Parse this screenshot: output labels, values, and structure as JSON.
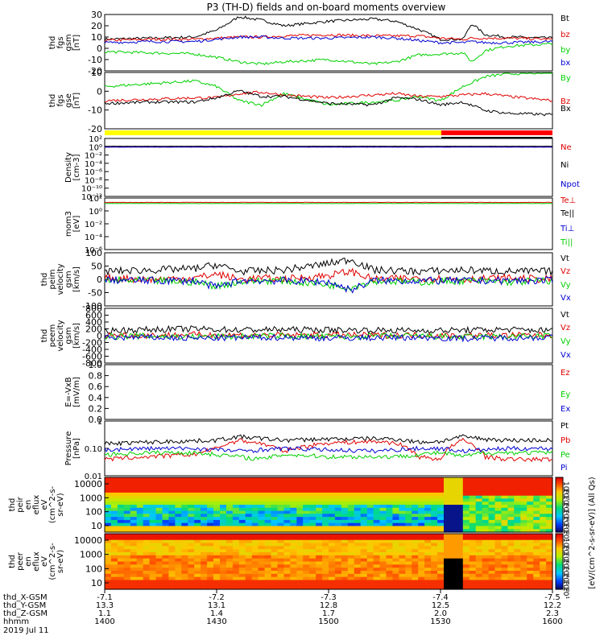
{
  "title": "P3 (TH-D) fields and on-board moments overview",
  "colors": {
    "black": "#000000",
    "red": "#e00000",
    "green": "#00d000",
    "blue": "#0000d0",
    "yellow": "#ffff00",
    "mode_red": "#ff0000",
    "dark_green": "#006000"
  },
  "chart_data": [
    {
      "type": "line",
      "ylabel": [
        "thd",
        "fgs",
        "gsm",
        "[nT]"
      ],
      "ylim": [
        -20,
        30
      ],
      "yticks": [
        "30",
        "20",
        "10",
        "0",
        "-10",
        "-20"
      ],
      "legend": [
        {
          "label": "Bt",
          "color": "#000000"
        },
        {
          "label": "bz",
          "color": "#e00000"
        },
        {
          "label": "by",
          "color": "#00d000"
        },
        {
          "label": "bx",
          "color": "#0000d0"
        }
      ],
      "x": [
        0,
        0.1,
        0.2,
        0.25,
        0.3,
        0.35,
        0.4,
        0.5,
        0.6,
        0.65,
        0.7,
        0.75,
        0.8,
        0.82,
        0.85,
        0.9,
        1.0
      ],
      "series": [
        {
          "name": "Bt",
          "color": "#000000",
          "values": [
            8,
            9,
            10,
            16,
            28,
            25,
            20,
            24,
            26,
            24,
            17,
            8,
            8,
            22,
            12,
            10,
            9
          ]
        },
        {
          "name": "bz",
          "color": "#e00000",
          "values": [
            7,
            8,
            8,
            9,
            10,
            10,
            11,
            12,
            11,
            11,
            11,
            9,
            8,
            9,
            9,
            9,
            8
          ]
        },
        {
          "name": "by",
          "color": "#00d000",
          "values": [
            -3,
            -4,
            -5,
            -8,
            -12,
            -14,
            -12,
            -10,
            -14,
            -12,
            -6,
            -5,
            -4,
            -12,
            -2,
            2,
            4
          ]
        },
        {
          "name": "bx",
          "color": "#0000d0",
          "values": [
            5,
            6,
            6,
            8,
            10,
            10,
            9,
            9,
            10,
            9,
            7,
            5,
            5,
            6,
            5,
            5,
            6
          ]
        }
      ]
    },
    {
      "type": "line",
      "ylabel": [
        "thd",
        "fgs",
        "gse",
        "[nT]"
      ],
      "ylim": [
        -25,
        15
      ],
      "yticks": [
        "10",
        "0",
        "-10",
        "-20"
      ],
      "legend": [
        {
          "label": "By",
          "color": "#00d000"
        },
        {
          "label": "Bz",
          "color": "#e00000"
        },
        {
          "label": "Bx",
          "color": "#000000"
        }
      ],
      "x": [
        0,
        0.1,
        0.2,
        0.25,
        0.3,
        0.35,
        0.4,
        0.5,
        0.6,
        0.65,
        0.7,
        0.75,
        0.8,
        0.85,
        0.9,
        1.0
      ],
      "series": [
        {
          "name": "By",
          "color": "#00d000",
          "values": [
            5,
            7,
            9,
            5,
            -5,
            -8,
            0,
            -8,
            -6,
            -5,
            -2,
            -5,
            5,
            12,
            14,
            15
          ]
        },
        {
          "name": "Bz",
          "color": "#e00000",
          "values": [
            -5,
            -4,
            -3,
            -3,
            0,
            1,
            -1,
            -3,
            -1,
            0,
            -2,
            -2,
            -1,
            0,
            -2,
            -5
          ]
        },
        {
          "name": "Bx",
          "color": "#000000",
          "values": [
            -7,
            -6,
            -6,
            -3,
            2,
            -2,
            -2,
            -7,
            -8,
            -3,
            -4,
            -8,
            -6,
            -12,
            -14,
            -15
          ]
        }
      ]
    },
    {
      "type": "line",
      "ylabel": [
        "Density",
        "[cm-3]"
      ],
      "log": true,
      "ylim_exp": [
        -12,
        2
      ],
      "yticks": [
        "10²",
        "10⁰",
        "10⁻²",
        "10⁻⁴",
        "10⁻⁶",
        "10⁻⁸",
        "10⁻¹⁰",
        "10⁻¹²"
      ],
      "legend": [
        {
          "label": "Ne",
          "color": "#e00000"
        },
        {
          "label": "Ni",
          "color": "#000000"
        },
        {
          "label": "Npot",
          "color": "#0000d0"
        }
      ],
      "x": [
        0,
        1
      ],
      "series": [
        {
          "name": "Ne",
          "color": "#e00000",
          "values": [
            1,
            1
          ]
        },
        {
          "name": "Ni",
          "color": "#000000",
          "values": [
            1.3,
            1.3
          ]
        },
        {
          "name": "Npot",
          "color": "#0000d0",
          "values": [
            0.8,
            0.8
          ]
        }
      ]
    },
    {
      "type": "line",
      "ylabel": [
        "mom3",
        "[eV]"
      ],
      "log": true,
      "ylim_exp": [
        -6,
        2.5
      ],
      "yticks": [
        "10²",
        "10⁰",
        "10⁻²",
        "10⁻⁴",
        "10⁻⁶"
      ],
      "legend": [
        {
          "label": "Te⊥",
          "color": "#e00000"
        },
        {
          "label": "Te||",
          "color": "#000000"
        },
        {
          "label": "Ti⊥",
          "color": "#0000d0"
        },
        {
          "label": "Ti||",
          "color": "#00d000"
        }
      ],
      "x": [
        0,
        1
      ],
      "series": [
        {
          "name": "Te⊥",
          "color": "#e00000",
          "values": [
            60,
            60
          ]
        },
        {
          "name": "Ti||",
          "color": "#00d000",
          "values": [
            40,
            40
          ]
        }
      ]
    },
    {
      "type": "line",
      "ylabel": [
        "thd",
        "peim",
        "velocity",
        "gsm",
        "[km/s]"
      ],
      "ylim": [
        -100,
        100
      ],
      "yticks": [
        "100",
        "50",
        "0",
        "-50",
        "-100"
      ],
      "legend": [
        {
          "label": "Vt",
          "color": "#000000"
        },
        {
          "label": "Vz",
          "color": "#e00000"
        },
        {
          "label": "Vy",
          "color": "#00d000"
        },
        {
          "label": "Vx",
          "color": "#0000d0"
        }
      ],
      "x": [
        0,
        0.1,
        0.2,
        0.25,
        0.3,
        0.35,
        0.4,
        0.5,
        0.55,
        0.6,
        0.7,
        0.8,
        0.9,
        1.0
      ],
      "series": [
        {
          "name": "Vt",
          "color": "#000000",
          "values": [
            30,
            35,
            40,
            55,
            30,
            32,
            35,
            60,
            75,
            35,
            30,
            35,
            30,
            30
          ]
        },
        {
          "name": "Vz",
          "color": "#e00000",
          "values": [
            5,
            0,
            5,
            20,
            0,
            5,
            0,
            15,
            30,
            0,
            5,
            0,
            5,
            0
          ]
        },
        {
          "name": "Vy",
          "color": "#00d000",
          "values": [
            -5,
            -5,
            -10,
            -25,
            -10,
            -5,
            -5,
            -20,
            -30,
            -5,
            -10,
            -5,
            -10,
            -5
          ]
        },
        {
          "name": "Vx",
          "color": "#0000d0",
          "values": [
            -2,
            -5,
            -5,
            -30,
            -5,
            -5,
            -5,
            -10,
            -40,
            -5,
            -5,
            -5,
            -5,
            -5
          ]
        }
      ]
    },
    {
      "type": "line",
      "ylabel": [
        "thd",
        "peem",
        "velocity",
        "gsm",
        "[km/s]"
      ],
      "ylim": [
        -800,
        800
      ],
      "yticks": [
        "800",
        "600",
        "400",
        "200",
        "0",
        "-200",
        "-400",
        "-600",
        "-800"
      ],
      "legend": [
        {
          "label": "Vt",
          "color": "#000000"
        },
        {
          "label": "Vz",
          "color": "#e00000"
        },
        {
          "label": "Vy",
          "color": "#00d000"
        },
        {
          "label": "Vx",
          "color": "#0000d0"
        }
      ],
      "x": [
        0,
        0.1,
        0.2,
        0.3,
        0.4,
        0.5,
        0.6,
        0.7,
        0.8,
        0.9,
        1.0
      ],
      "series": [
        {
          "name": "Vt",
          "color": "#000000",
          "values": [
            150,
            180,
            200,
            170,
            180,
            170,
            160,
            150,
            160,
            180,
            150
          ]
        },
        {
          "name": "Vz",
          "color": "#e00000",
          "values": [
            20,
            10,
            30,
            20,
            10,
            20,
            10,
            20,
            0,
            10,
            20
          ]
        },
        {
          "name": "Vy",
          "color": "#00d000",
          "values": [
            -20,
            -10,
            -30,
            -20,
            -10,
            -30,
            -20,
            -10,
            -40,
            -20,
            -10
          ]
        },
        {
          "name": "Vx",
          "color": "#0000d0",
          "values": [
            -60,
            -50,
            -80,
            -60,
            -50,
            -70,
            -60,
            -50,
            -80,
            -60,
            -50
          ]
        }
      ]
    },
    {
      "type": "line",
      "ylabel": [
        "E=-VxB",
        "[mV/m]"
      ],
      "ylim": [
        0,
        1
      ],
      "yticks": [
        "1.0",
        "0.8",
        "0.6",
        "0.4",
        "0.2",
        "0.0"
      ],
      "legend": [
        {
          "label": "Ez",
          "color": "#e00000"
        },
        {
          "label": "Ey",
          "color": "#00d000"
        },
        {
          "label": "Ex",
          "color": "#0000d0"
        }
      ],
      "x": [],
      "series": []
    },
    {
      "type": "line",
      "ylabel": [
        "Pressure",
        "[nPa]"
      ],
      "log": true,
      "ylim_exp": [
        -2,
        0
      ],
      "yticks": [
        "1",
        "0.10",
        "0.01"
      ],
      "legend": [
        {
          "label": "Pt",
          "color": "#000000"
        },
        {
          "label": "Pb",
          "color": "#e00000"
        },
        {
          "label": "Pe",
          "color": "#00d000"
        },
        {
          "label": "Pi",
          "color": "#0000d0"
        }
      ],
      "x": [
        0,
        0.1,
        0.2,
        0.25,
        0.3,
        0.35,
        0.4,
        0.5,
        0.6,
        0.65,
        0.7,
        0.75,
        0.8,
        0.85,
        0.9,
        1.0
      ],
      "series": [
        {
          "name": "Pt",
          "color": "#000000",
          "values": [
            0.15,
            0.17,
            0.19,
            0.2,
            0.27,
            0.23,
            0.2,
            0.22,
            0.23,
            0.22,
            0.17,
            0.18,
            0.27,
            0.22,
            0.2,
            0.2
          ]
        },
        {
          "name": "Pb",
          "color": "#e00000",
          "values": [
            0.04,
            0.05,
            0.06,
            0.1,
            0.2,
            0.15,
            0.08,
            0.16,
            0.18,
            0.16,
            0.05,
            0.04,
            0.2,
            0.05,
            0.04,
            0.04
          ]
        },
        {
          "name": "Pe",
          "color": "#00d000",
          "values": [
            0.06,
            0.07,
            0.07,
            0.06,
            0.05,
            0.04,
            0.06,
            0.05,
            0.05,
            0.05,
            0.06,
            0.07,
            0.05,
            0.07,
            0.07,
            0.07
          ]
        },
        {
          "name": "Pi",
          "color": "#0000d0",
          "values": [
            0.09,
            0.1,
            0.1,
            0.09,
            0.08,
            0.09,
            0.1,
            0.09,
            0.08,
            0.09,
            0.1,
            0.1,
            0.08,
            0.09,
            0.1,
            0.1
          ]
        }
      ]
    },
    {
      "type": "heatmap",
      "ylabel": [
        "thd",
        "peir",
        "en",
        "eflux",
        "eV",
        "(cm^2-s-",
        "sr-eV)"
      ],
      "yticks": [
        "10000",
        "1000",
        "100",
        "10"
      ]
    },
    {
      "type": "heatmap",
      "ylabel": [
        "thd",
        "peer",
        "en",
        "eflux",
        "eV",
        "(cm^2-s-",
        "sr-eV)"
      ],
      "yticks": [
        "10000",
        "1000",
        "100",
        "10"
      ]
    }
  ],
  "colorbar": {
    "label": "[eV/(cm^2-s-sr-eV)] (All Qs)",
    "ticks_top": [
      "10⁸",
      "10⁷",
      "10⁶",
      "10⁵",
      "10⁴",
      "10³",
      "10²",
      "10¹"
    ],
    "ticks_bottom": [
      "10⁸",
      "10⁷",
      "10⁶",
      "10⁵",
      "10⁴",
      "10³",
      "10²",
      "10¹"
    ]
  },
  "x_axis": {
    "rows": [
      {
        "label": "thd_X-GSM",
        "values": [
          "-7.1",
          "-7.2",
          "-7.3",
          "-7.4",
          "-7.5"
        ]
      },
      {
        "label": "thd_Y-GSM",
        "values": [
          "13.3",
          "13.1",
          "12.8",
          "12.5",
          "12.2"
        ]
      },
      {
        "label": "thd_Z-GSM",
        "values": [
          "1.1",
          "1.4",
          "1.7",
          "2.0",
          "2.3"
        ]
      },
      {
        "label": "hhmm",
        "values": [
          "1400",
          "1430",
          "1500",
          "1530",
          "1600"
        ]
      }
    ],
    "date": "2019 Jul 11"
  }
}
